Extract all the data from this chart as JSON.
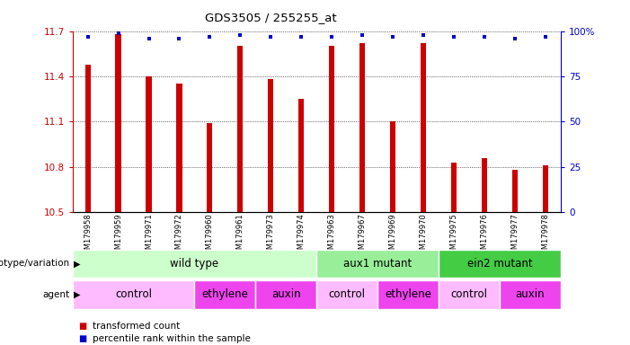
{
  "title": "GDS3505 / 255255_at",
  "samples": [
    "GSM179958",
    "GSM179959",
    "GSM179971",
    "GSM179972",
    "GSM179960",
    "GSM179961",
    "GSM179973",
    "GSM179974",
    "GSM179963",
    "GSM179967",
    "GSM179969",
    "GSM179970",
    "GSM179975",
    "GSM179976",
    "GSM179977",
    "GSM179978"
  ],
  "bar_values": [
    11.48,
    11.68,
    11.4,
    11.35,
    11.09,
    11.6,
    11.38,
    11.25,
    11.6,
    11.62,
    11.1,
    11.62,
    10.83,
    10.86,
    10.78,
    10.81
  ],
  "percentile_values": [
    97,
    99,
    96,
    96,
    97,
    98,
    97,
    97,
    97,
    98,
    97,
    98,
    97,
    97,
    96,
    97
  ],
  "ylim_left": [
    10.5,
    11.7
  ],
  "ylim_right": [
    0,
    100
  ],
  "yticks_left": [
    10.5,
    10.8,
    11.1,
    11.4,
    11.7
  ],
  "yticks_right": [
    0,
    25,
    50,
    75,
    100
  ],
  "ytick_right_labels": [
    "0",
    "25",
    "50",
    "75",
    "100%"
  ],
  "bar_color": "#cc0000",
  "percentile_color": "#0000cc",
  "genotype_groups": [
    {
      "label": "wild type",
      "start": 0,
      "end": 7,
      "color": "#ccffcc"
    },
    {
      "label": "aux1 mutant",
      "start": 8,
      "end": 11,
      "color": "#99ee99"
    },
    {
      "label": "ein2 mutant",
      "start": 12,
      "end": 15,
      "color": "#44cc44"
    }
  ],
  "agent_groups": [
    {
      "label": "control",
      "start": 0,
      "end": 3,
      "color": "#ffbbff"
    },
    {
      "label": "ethylene",
      "start": 4,
      "end": 5,
      "color": "#ee44ee"
    },
    {
      "label": "auxin",
      "start": 6,
      "end": 7,
      "color": "#ee44ee"
    },
    {
      "label": "control",
      "start": 8,
      "end": 9,
      "color": "#ffbbff"
    },
    {
      "label": "ethylene",
      "start": 10,
      "end": 11,
      "color": "#ee44ee"
    },
    {
      "label": "control",
      "start": 12,
      "end": 13,
      "color": "#ffbbff"
    },
    {
      "label": "auxin",
      "start": 14,
      "end": 15,
      "color": "#ee44ee"
    }
  ],
  "legend_items": [
    {
      "label": "transformed count",
      "color": "#cc0000"
    },
    {
      "label": "percentile rank within the sample",
      "color": "#0000cc"
    }
  ]
}
